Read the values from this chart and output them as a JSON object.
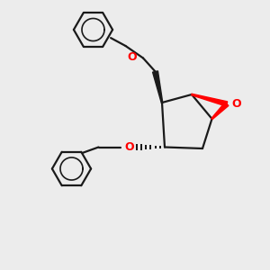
{
  "background_color": "#ececec",
  "bond_color": "#1a1a1a",
  "oxygen_color": "#ff0000",
  "bond_width": 1.6,
  "figsize": [
    3.0,
    3.0
  ],
  "dpi": 100,
  "xlim": [
    0,
    10
  ],
  "ylim": [
    0,
    10
  ]
}
